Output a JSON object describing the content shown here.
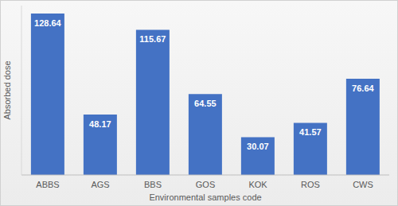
{
  "chart_data": {
    "type": "bar",
    "categories": [
      "ABBS",
      "AGS",
      "BBS",
      "GOS",
      "KOK",
      "ROS",
      "CWS"
    ],
    "values": [
      128.64,
      48.17,
      115.67,
      64.55,
      30.07,
      41.57,
      76.64
    ],
    "color": "#4472c4",
    "ylim": [
      0,
      135
    ],
    "xlabel": "Environmental samples code",
    "ylabel": "Absorbed dose",
    "data_labels": true,
    "tick_labels": "x",
    "grid": false
  }
}
